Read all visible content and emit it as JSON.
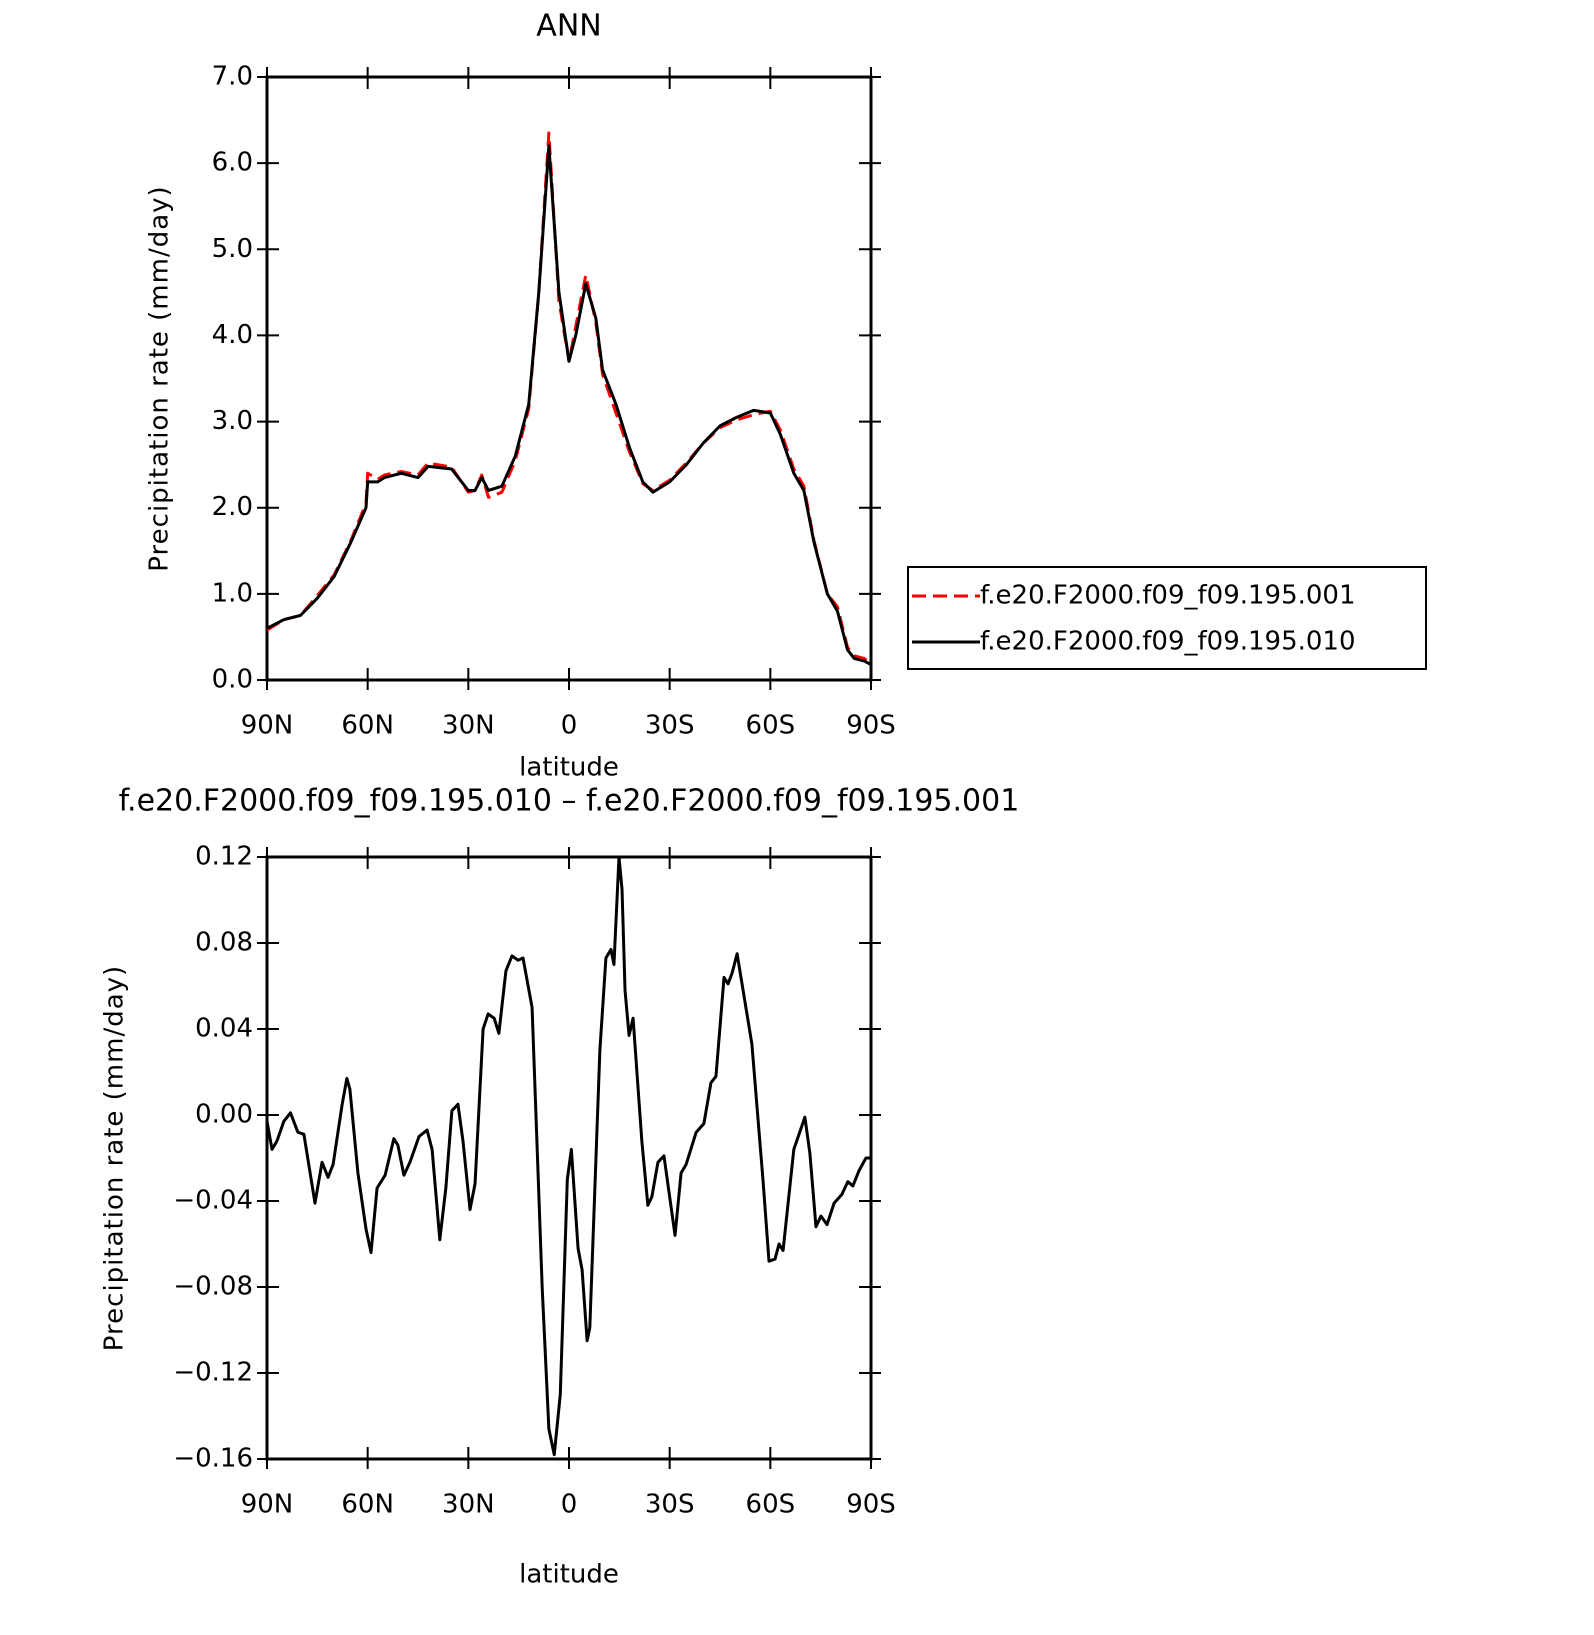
{
  "chart_data": [
    {
      "type": "line",
      "title": "ANN",
      "xlabel": "latitude",
      "ylabel": "Precipitation rate (mm/day)",
      "x": [
        90,
        85,
        80,
        75,
        70,
        65,
        60.5,
        60,
        57,
        55,
        50,
        45,
        42,
        35,
        30,
        28,
        26,
        24,
        20,
        16,
        12,
        9,
        6,
        3,
        0,
        -2,
        -5,
        -8,
        -10,
        -14,
        -18,
        -22,
        -25,
        -30,
        -35,
        -40,
        -45,
        -50,
        -55,
        -60,
        -63,
        -67,
        -70,
        -73,
        -77,
        -80,
        -83,
        -85,
        -88,
        -90
      ],
      "series": [
        {
          "name": "f.e20.F2000.f09_f09.195.001",
          "color": "#ff0000",
          "line_style": "dashed",
          "values": [
            0.58,
            0.7,
            0.75,
            0.98,
            1.22,
            1.62,
            2.05,
            2.4,
            2.33,
            2.38,
            2.42,
            2.38,
            2.52,
            2.47,
            2.18,
            2.2,
            2.38,
            2.12,
            2.18,
            2.55,
            3.15,
            4.5,
            6.35,
            4.4,
            3.7,
            4.1,
            4.7,
            4.15,
            3.55,
            3.1,
            2.65,
            2.28,
            2.2,
            2.32,
            2.52,
            2.75,
            2.93,
            3.02,
            3.08,
            3.12,
            2.9,
            2.45,
            2.25,
            1.62,
            1.0,
            0.85,
            0.38,
            0.28,
            0.25,
            0.18
          ]
        },
        {
          "name": "f.e20.F2000.f09_f09.195.010",
          "color": "#000000",
          "line_style": "solid",
          "values": [
            0.6,
            0.7,
            0.75,
            0.95,
            1.2,
            1.6,
            2.0,
            2.3,
            2.3,
            2.35,
            2.4,
            2.35,
            2.48,
            2.45,
            2.2,
            2.2,
            2.35,
            2.2,
            2.25,
            2.6,
            3.2,
            4.5,
            6.2,
            4.5,
            3.7,
            4.0,
            4.6,
            4.2,
            3.6,
            3.2,
            2.7,
            2.3,
            2.18,
            2.3,
            2.5,
            2.75,
            2.95,
            3.05,
            3.13,
            3.1,
            2.85,
            2.4,
            2.2,
            1.6,
            1.0,
            0.8,
            0.35,
            0.25,
            0.22,
            0.18
          ]
        }
      ],
      "xlim": [
        90,
        -90
      ],
      "xticks": [
        {
          "value": 90,
          "label": "90N"
        },
        {
          "value": 60,
          "label": "60N"
        },
        {
          "value": 30,
          "label": "30N"
        },
        0,
        {
          "value": -30,
          "label": "30S"
        },
        {
          "value": -60,
          "label": "60S"
        },
        {
          "value": -90,
          "label": "90S"
        }
      ],
      "ylim": [
        0,
        7
      ],
      "yticks": [
        {
          "value": 0,
          "label": "0.0"
        },
        {
          "value": 1,
          "label": "1.0"
        },
        {
          "value": 2,
          "label": "2.0"
        },
        {
          "value": 3,
          "label": "3.0"
        },
        {
          "value": 4,
          "label": "4.0"
        },
        {
          "value": 5,
          "label": "5.0"
        },
        {
          "value": 6,
          "label": "6.0"
        },
        {
          "value": 7,
          "label": "7.0"
        }
      ],
      "legend": "outside-right"
    },
    {
      "type": "line",
      "title": "f.e20.F2000.f09_f09.195.010 – f.e20.F2000.f09_f09.195.001",
      "xlabel": "latitude",
      "ylabel": "Precipitation rate (mm/day)",
      "color": "#000000",
      "x": [
        90,
        88.5,
        87,
        85,
        83,
        80.8,
        79,
        75.7,
        73.6,
        71.8,
        70.3,
        67.6,
        66.2,
        65.3,
        62.9,
        60.5,
        59,
        57.2,
        54.8,
        52.2,
        51,
        49.2,
        47.4,
        44.7,
        42.3,
        40.8,
        38.5,
        36.7,
        34.9,
        33.1,
        31.6,
        29.5,
        28,
        25.6,
        24.1,
        22.3,
        20.9,
        18.8,
        17,
        15.2,
        13.7,
        11,
        8,
        6,
        4.4,
        2.6,
        0.5,
        -0.7,
        -2.7,
        -3.9,
        -5.4,
        -6.2,
        -9.2,
        -11,
        -12.5,
        -13.4,
        -14.9,
        -15.8,
        -16.7,
        -17.9,
        -19.1,
        -21.7,
        -23.5,
        -24.7,
        -26.5,
        -28.3,
        -31.6,
        -33.4,
        -34.9,
        -37.9,
        -40.2,
        -42.3,
        -43.8,
        -46.2,
        -47.4,
        -48.6,
        -50.1,
        -52.4,
        -54.5,
        -57.8,
        -59.6,
        -61.4,
        -62.6,
        -63.8,
        -67,
        -70.3,
        -71.8,
        -73.6,
        -75.1,
        -76.9,
        -79,
        -81.3,
        -83.1,
        -84.6,
        -86.4,
        -88.5,
        -90
      ],
      "values": [
        -0.003,
        -0.016,
        -0.012,
        -0.003,
        0.001,
        -0.008,
        -0.009,
        -0.041,
        -0.022,
        -0.029,
        -0.023,
        0.005,
        0.017,
        0.012,
        -0.027,
        -0.053,
        -0.064,
        -0.034,
        -0.028,
        -0.011,
        -0.014,
        -0.028,
        -0.022,
        -0.01,
        -0.007,
        -0.016,
        -0.058,
        -0.034,
        0.002,
        0.005,
        -0.012,
        -0.044,
        -0.032,
        0.04,
        0.047,
        0.045,
        0.038,
        0.067,
        0.074,
        0.072,
        0.073,
        0.05,
        -0.08,
        -0.146,
        -0.158,
        -0.13,
        -0.03,
        -0.016,
        -0.062,
        -0.072,
        -0.105,
        -0.099,
        0.03,
        0.073,
        0.077,
        0.07,
        0.12,
        0.105,
        0.058,
        0.037,
        0.045,
        -0.012,
        -0.042,
        -0.038,
        -0.022,
        -0.019,
        -0.056,
        -0.027,
        -0.023,
        -0.008,
        -0.004,
        0.015,
        0.018,
        0.064,
        0.061,
        0.066,
        0.075,
        0.053,
        0.033,
        -0.03,
        -0.068,
        -0.067,
        -0.06,
        -0.063,
        -0.016,
        -0.001,
        -0.018,
        -0.052,
        -0.047,
        -0.051,
        -0.041,
        -0.037,
        -0.031,
        -0.033,
        -0.026,
        -0.02,
        -0.02
      ],
      "xlim": [
        90,
        -90
      ],
      "xticks": [
        {
          "value": 90,
          "label": "90N"
        },
        {
          "value": 60,
          "label": "60N"
        },
        {
          "value": 30,
          "label": "30N"
        },
        0,
        {
          "value": -30,
          "label": "30S"
        },
        {
          "value": -60,
          "label": "60S"
        },
        {
          "value": -90,
          "label": "90S"
        }
      ],
      "ylim": [
        -0.16,
        0.12
      ],
      "yticks": [
        {
          "value": -0.16,
          "label": "−0.16"
        },
        {
          "value": -0.12,
          "label": "−0.12"
        },
        {
          "value": -0.08,
          "label": "−0.08"
        },
        {
          "value": -0.04,
          "label": "−0.04"
        },
        {
          "value": 0,
          "label": "0.00"
        },
        0.04,
        0.08,
        0.12
      ]
    }
  ]
}
